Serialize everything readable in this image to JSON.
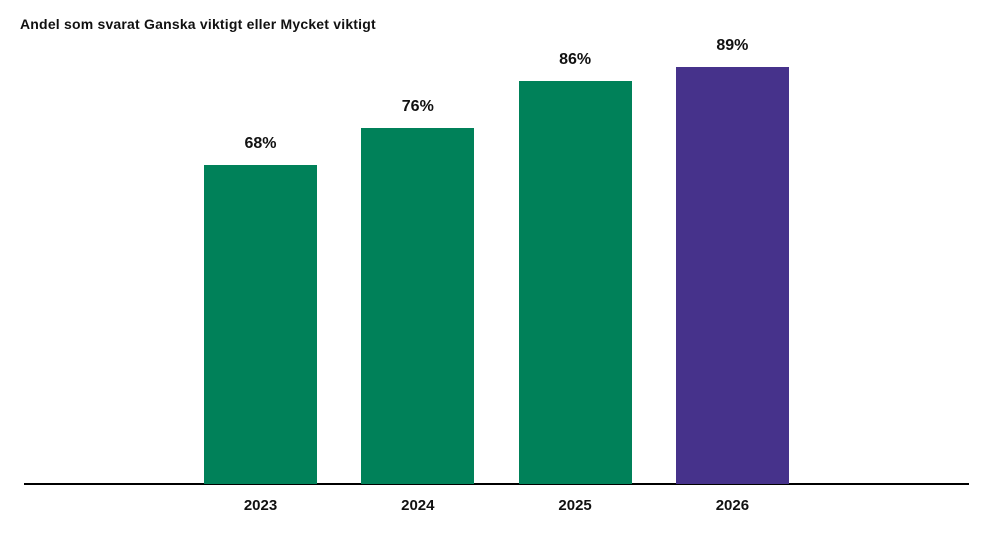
{
  "chart_data": {
    "type": "bar",
    "title": "Andel som svarat Ganska viktigt eller Mycket viktigt",
    "categories": [
      "2023",
      "2024",
      "2025",
      "2026"
    ],
    "values": [
      68,
      76,
      86,
      89
    ],
    "value_labels": [
      "68%",
      "76%",
      "86%",
      "89%"
    ],
    "series": [
      {
        "name": "Andel som svarat Ganska viktigt eller Mycket viktigt",
        "values": [
          68,
          76,
          86,
          89
        ]
      }
    ],
    "xlabel": "",
    "ylabel": "",
    "ylim": [
      0,
      100
    ],
    "grid": false,
    "legend": "none",
    "y_axis_visible": false,
    "bar_colors": [
      "#008159",
      "#008159",
      "#008159",
      "#46328B"
    ]
  },
  "colors": {
    "bar_green": "#008159",
    "bar_purple": "#46328B",
    "text": "#111111",
    "axis": "#000000",
    "background": "#ffffff"
  }
}
